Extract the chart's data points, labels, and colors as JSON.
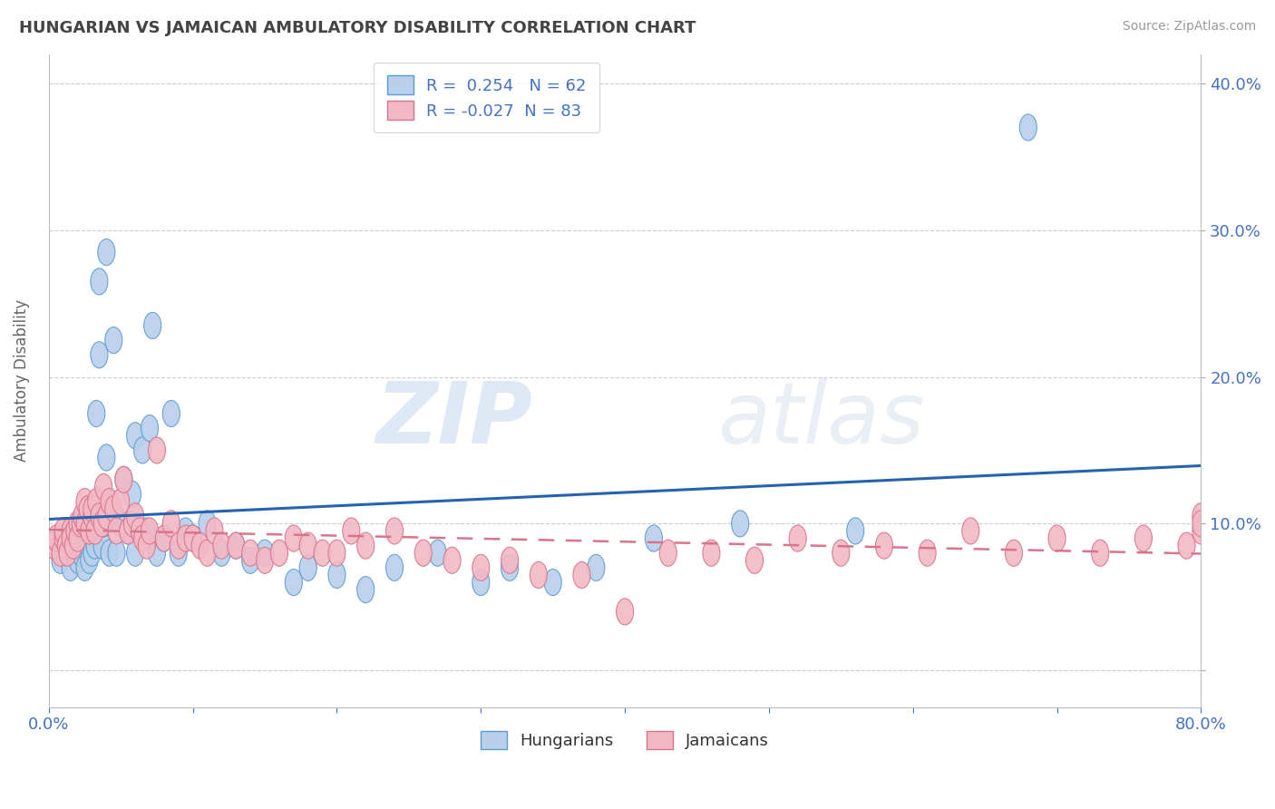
{
  "title": "HUNGARIAN VS JAMAICAN AMBULATORY DISABILITY CORRELATION CHART",
  "source": "Source: ZipAtlas.com",
  "ylabel": "Ambulatory Disability",
  "y_ticks": [
    0.0,
    0.1,
    0.2,
    0.3,
    0.4
  ],
  "y_tick_labels": [
    "",
    "10.0%",
    "20.0%",
    "30.0%",
    "40.0%"
  ],
  "x_lim": [
    0.0,
    0.8
  ],
  "y_lim": [
    -0.025,
    0.42
  ],
  "hungarian_color": "#b8d0ea",
  "hungarian_edge_color": "#5b9bd5",
  "jamaican_color": "#f2b8c6",
  "jamaican_edge_color": "#d9748a",
  "regression_blue_color": "#2563b0",
  "regression_pink_color": "#d9748a",
  "R_hungarian": 0.254,
  "N_hungarian": 62,
  "R_jamaican": -0.027,
  "N_jamaican": 83,
  "watermark_zip": "ZIP",
  "watermark_atlas": "atlas",
  "background_color": "#ffffff",
  "grid_color": "#cccccc",
  "hungarian_x": [
    0.005,
    0.008,
    0.01,
    0.012,
    0.015,
    0.015,
    0.018,
    0.02,
    0.02,
    0.022,
    0.025,
    0.025,
    0.027,
    0.028,
    0.03,
    0.03,
    0.032,
    0.033,
    0.035,
    0.035,
    0.037,
    0.038,
    0.04,
    0.04,
    0.042,
    0.045,
    0.047,
    0.05,
    0.052,
    0.055,
    0.058,
    0.06,
    0.06,
    0.065,
    0.068,
    0.07,
    0.072,
    0.075,
    0.08,
    0.085,
    0.09,
    0.095,
    0.1,
    0.11,
    0.12,
    0.13,
    0.14,
    0.15,
    0.17,
    0.18,
    0.2,
    0.22,
    0.24,
    0.27,
    0.3,
    0.32,
    0.35,
    0.38,
    0.42,
    0.48,
    0.56,
    0.68
  ],
  "hungarian_y": [
    0.085,
    0.075,
    0.08,
    0.09,
    0.07,
    0.085,
    0.08,
    0.095,
    0.075,
    0.08,
    0.09,
    0.07,
    0.085,
    0.075,
    0.09,
    0.08,
    0.085,
    0.175,
    0.265,
    0.215,
    0.085,
    0.1,
    0.285,
    0.145,
    0.08,
    0.225,
    0.08,
    0.1,
    0.13,
    0.095,
    0.12,
    0.16,
    0.08,
    0.15,
    0.095,
    0.165,
    0.235,
    0.08,
    0.09,
    0.175,
    0.08,
    0.095,
    0.09,
    0.1,
    0.08,
    0.085,
    0.075,
    0.08,
    0.06,
    0.07,
    0.065,
    0.055,
    0.07,
    0.08,
    0.06,
    0.07,
    0.06,
    0.07,
    0.09,
    0.1,
    0.095,
    0.37
  ],
  "jamaican_x": [
    0.003,
    0.005,
    0.008,
    0.01,
    0.01,
    0.012,
    0.013,
    0.015,
    0.015,
    0.017,
    0.018,
    0.02,
    0.02,
    0.022,
    0.023,
    0.025,
    0.025,
    0.027,
    0.028,
    0.03,
    0.03,
    0.032,
    0.033,
    0.035,
    0.037,
    0.038,
    0.04,
    0.042,
    0.045,
    0.047,
    0.05,
    0.052,
    0.055,
    0.058,
    0.06,
    0.063,
    0.065,
    0.068,
    0.07,
    0.075,
    0.08,
    0.085,
    0.09,
    0.095,
    0.1,
    0.105,
    0.11,
    0.115,
    0.12,
    0.13,
    0.14,
    0.15,
    0.16,
    0.17,
    0.18,
    0.19,
    0.2,
    0.21,
    0.22,
    0.24,
    0.26,
    0.28,
    0.3,
    0.32,
    0.34,
    0.37,
    0.4,
    0.43,
    0.46,
    0.49,
    0.52,
    0.55,
    0.58,
    0.61,
    0.64,
    0.67,
    0.7,
    0.73,
    0.76,
    0.79,
    0.8,
    0.8,
    0.8
  ],
  "jamaican_y": [
    0.085,
    0.09,
    0.08,
    0.09,
    0.095,
    0.085,
    0.08,
    0.095,
    0.09,
    0.085,
    0.095,
    0.1,
    0.09,
    0.1,
    0.105,
    0.1,
    0.115,
    0.11,
    0.095,
    0.105,
    0.11,
    0.095,
    0.115,
    0.105,
    0.1,
    0.125,
    0.105,
    0.115,
    0.11,
    0.095,
    0.115,
    0.13,
    0.095,
    0.1,
    0.105,
    0.095,
    0.09,
    0.085,
    0.095,
    0.15,
    0.09,
    0.1,
    0.085,
    0.09,
    0.09,
    0.085,
    0.08,
    0.095,
    0.085,
    0.085,
    0.08,
    0.075,
    0.08,
    0.09,
    0.085,
    0.08,
    0.08,
    0.095,
    0.085,
    0.095,
    0.08,
    0.075,
    0.07,
    0.075,
    0.065,
    0.065,
    0.04,
    0.08,
    0.08,
    0.075,
    0.09,
    0.08,
    0.085,
    0.08,
    0.095,
    0.08,
    0.09,
    0.08,
    0.09,
    0.085,
    0.105,
    0.095,
    0.1
  ]
}
